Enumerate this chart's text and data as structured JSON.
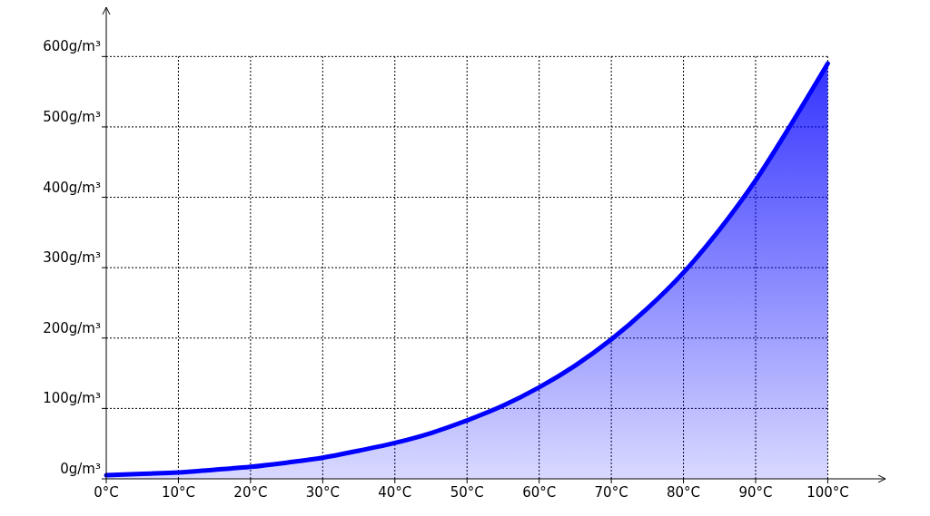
{
  "chart_data": {
    "type": "area",
    "x": [
      0,
      5,
      10,
      15,
      20,
      25,
      30,
      35,
      40,
      45,
      50,
      55,
      60,
      65,
      70,
      75,
      80,
      85,
      90,
      95,
      100
    ],
    "series": [
      {
        "color": "#0000ff",
        "values": [
          5,
          7,
          9,
          13,
          17,
          23,
          30,
          40,
          51,
          65,
          83,
          104,
          130,
          161,
          198,
          242,
          293,
          354,
          424,
          505,
          590
        ]
      }
    ],
    "xlim": [
      0,
      108
    ],
    "ylim": [
      0,
      670
    ],
    "xticks": [
      {
        "value": 0,
        "label": "0°C"
      },
      {
        "value": 10,
        "label": "10°C"
      },
      {
        "value": 20,
        "label": "20°C"
      },
      {
        "value": 30,
        "label": "30°C"
      },
      {
        "value": 40,
        "label": "40°C"
      },
      {
        "value": 50,
        "label": "50°C"
      },
      {
        "value": 60,
        "label": "60°C"
      },
      {
        "value": 70,
        "label": "70°C"
      },
      {
        "value": 80,
        "label": "80°C"
      },
      {
        "value": 90,
        "label": "90°C"
      },
      {
        "value": 100,
        "label": "100°C"
      }
    ],
    "yticks": [
      {
        "value": 0,
        "label": "0g/m³"
      },
      {
        "value": 100,
        "label": "100g/m³"
      },
      {
        "value": 200,
        "label": "200g/m³"
      },
      {
        "value": 300,
        "label": "300g/m³"
      },
      {
        "value": 400,
        "label": "400g/m³"
      },
      {
        "value": 500,
        "label": "500g/m³"
      },
      {
        "value": 600,
        "label": "600g/m³"
      }
    ],
    "grid": true,
    "line_style": "solid",
    "marker": "none"
  }
}
